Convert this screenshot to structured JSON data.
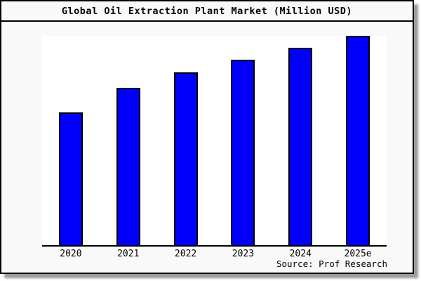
{
  "figure": {
    "title": "Global Oil Extraction Plant Market (Million USD)",
    "source_note": "Source: Prof Research"
  },
  "colors": {
    "bar_fill": "#0000fa",
    "bar_border": "#000000",
    "figure_background": "#f9f9f9",
    "plot_background": "#ffffff",
    "axis_line": "#000000",
    "shadow": "#9c9c9c"
  },
  "chart_data": {
    "type": "bar",
    "title": "Global Oil Extraction Plant Market (Million USD)",
    "categories": [
      "2020",
      "2021",
      "2022",
      "2023",
      "2024",
      "2025e"
    ],
    "values": [
      63.3,
      75.3,
      82.7,
      88.7,
      94.3,
      100
    ],
    "values_note": "no numeric y-axis shown; values estimated from bar heights, indexed to 2025e = 100",
    "xlabel": "",
    "ylabel": "",
    "ylim": [
      0,
      100
    ],
    "grid": false,
    "legend": false,
    "annotations": [
      "Source: Prof Research"
    ]
  }
}
